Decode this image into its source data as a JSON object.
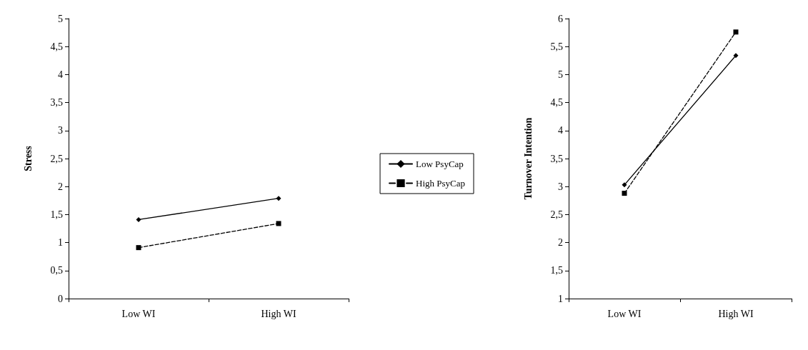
{
  "chart_data": [
    {
      "type": "line",
      "ylabel": "Stress",
      "categories": [
        "Low WI",
        "High WI"
      ],
      "series": [
        {
          "name": "Low PsyCap",
          "color": "#000000",
          "values": [
            1.41,
            1.79
          ],
          "marker": "diamond",
          "line_style": "solid"
        },
        {
          "name": "High PsyCap",
          "color": "#000000",
          "values": [
            0.91,
            1.34
          ],
          "marker": "square",
          "line_style": "dashed"
        }
      ],
      "ylim": [
        0,
        5
      ],
      "yticks": [
        0,
        {
          "value": 0.5,
          "label": "0,5"
        },
        1,
        {
          "value": 1.5,
          "label": "1,5"
        },
        2,
        {
          "value": 2.5,
          "label": "2,5"
        },
        3,
        {
          "value": 3.5,
          "label": "3,5"
        },
        4,
        {
          "value": 4.5,
          "label": "4,5"
        },
        5
      ],
      "grid": false,
      "legend": "right"
    },
    {
      "type": "line",
      "ylabel": "Turnover Intention",
      "categories": [
        "Low WI",
        "High WI"
      ],
      "series": [
        {
          "color": "#000000",
          "values": [
            3.03,
            5.34
          ],
          "marker": "diamond",
          "line_style": "solid"
        },
        {
          "color": "#000000",
          "values": [
            2.88,
            5.76
          ],
          "marker": "square",
          "line_style": "dashed"
        }
      ],
      "ylim": [
        1,
        6
      ],
      "yticks": [
        1,
        {
          "value": 1.5,
          "label": "1,5"
        },
        2,
        {
          "value": 2.5,
          "label": "2,5"
        },
        3,
        {
          "value": 3.5,
          "label": "3,5"
        },
        4,
        {
          "value": 4.5,
          "label": "4,5"
        },
        5,
        {
          "value": 5.5,
          "label": "5,5"
        },
        6
      ],
      "grid": false,
      "legend": false
    }
  ]
}
